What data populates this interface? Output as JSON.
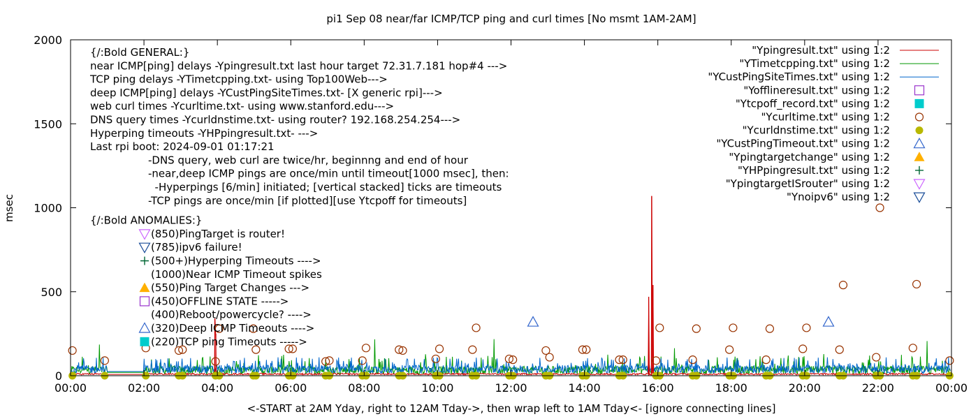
{
  "chart_data": {
    "type": "line",
    "title": "pi1 Sep 08  near/far ICMP/TCP ping and curl times [No msmt 1AM-2AM]",
    "xlabel": "<-START at 2AM Yday, right to 12AM Tday->, then wrap left to 1AM Tday<- [ignore connecting lines]",
    "ylabel": "msec",
    "xlim": [
      0,
      24
    ],
    "ylim": [
      0,
      2000
    ],
    "x_unit": "hours",
    "x_ticks": [
      {
        "x": 0,
        "label": "00:00"
      },
      {
        "x": 2,
        "label": "02:00"
      },
      {
        "x": 4,
        "label": "04:00"
      },
      {
        "x": 6,
        "label": "06:00"
      },
      {
        "x": 8,
        "label": "08:00"
      },
      {
        "x": 10,
        "label": "10:00"
      },
      {
        "x": 12,
        "label": "12:00"
      },
      {
        "x": 14,
        "label": "14:00"
      },
      {
        "x": 16,
        "label": "16:00"
      },
      {
        "x": 18,
        "label": "18:00"
      },
      {
        "x": 20,
        "label": "20:00"
      },
      {
        "x": 22,
        "label": "22:00"
      },
      {
        "x": 24,
        "label": "00:00"
      }
    ],
    "y_ticks": [
      0,
      500,
      1000,
      1500,
      2000
    ],
    "grid": false,
    "legend_position": "top-right",
    "legend": [
      {
        "label": "\"Ypingresult.txt\" using 1:2",
        "symbol": "line",
        "color": "#cc0000"
      },
      {
        "label": "\"YTimetcpping.txt\" using 1:2",
        "symbol": "line",
        "color": "#009900"
      },
      {
        "label": "\"YCustPingSiteTimes.txt\" using 1:2",
        "symbol": "line",
        "color": "#0066cc"
      },
      {
        "label": "\"Yofflineresult.txt\" using 1:2",
        "symbol": "open-square",
        "color": "#9933cc"
      },
      {
        "label": "\"Ytcpoff_record.txt\" using 1:2",
        "symbol": "filled-square",
        "color": "#00cccc"
      },
      {
        "label": "\"Ycurltime.txt\" using 1:2",
        "symbol": "open-circle",
        "color": "#993300"
      },
      {
        "label": "\"Ycurldnstime.txt\" using 1:2",
        "symbol": "filled-circle",
        "color": "#b8b800"
      },
      {
        "label": "\"YCustPingTimeout.txt\" using 1:2",
        "symbol": "open-triangle-up",
        "color": "#3366cc"
      },
      {
        "label": "\"Ypingtargetchange\" using 1:2",
        "symbol": "filled-triangle-up",
        "color": "#ffb000"
      },
      {
        "label": "\"YHPpingresult.txt\" using 1:2",
        "symbol": "plus",
        "color": "#006633"
      },
      {
        "label": "\"YpingtargetISrouter\" using 1:2",
        "symbol": "open-triangle-down",
        "color": "#cc66ff"
      },
      {
        "label": "\"Ynoipv6\" using 1:2",
        "symbol": "open-triangle-down",
        "color": "#1a4d99"
      }
    ],
    "ping_spikes": [
      {
        "x": 3.93,
        "y": 340
      },
      {
        "x": 3.96,
        "y": 250
      },
      {
        "x": 15.75,
        "y": 470
      },
      {
        "x": 15.83,
        "y": 1070
      },
      {
        "x": 15.87,
        "y": 540
      }
    ],
    "curl_points": [
      {
        "x": 0.05,
        "y": 150
      },
      {
        "x": 0.93,
        "y": 90
      },
      {
        "x": 2.05,
        "y": 165
      },
      {
        "x": 2.95,
        "y": 150
      },
      {
        "x": 3.05,
        "y": 155
      },
      {
        "x": 3.95,
        "y": 85
      },
      {
        "x": 4.05,
        "y": 280
      },
      {
        "x": 4.98,
        "y": 280
      },
      {
        "x": 5.05,
        "y": 155
      },
      {
        "x": 5.95,
        "y": 160
      },
      {
        "x": 6.05,
        "y": 160
      },
      {
        "x": 6.95,
        "y": 85
      },
      {
        "x": 7.05,
        "y": 90
      },
      {
        "x": 7.95,
        "y": 90
      },
      {
        "x": 8.05,
        "y": 165
      },
      {
        "x": 8.95,
        "y": 155
      },
      {
        "x": 9.05,
        "y": 150
      },
      {
        "x": 9.95,
        "y": 100
      },
      {
        "x": 10.05,
        "y": 160
      },
      {
        "x": 10.95,
        "y": 155
      },
      {
        "x": 11.05,
        "y": 285
      },
      {
        "x": 11.95,
        "y": 100
      },
      {
        "x": 12.05,
        "y": 95
      },
      {
        "x": 12.95,
        "y": 150
      },
      {
        "x": 13.05,
        "y": 110
      },
      {
        "x": 13.95,
        "y": 155
      },
      {
        "x": 14.05,
        "y": 155
      },
      {
        "x": 14.95,
        "y": 95
      },
      {
        "x": 15.05,
        "y": 95
      },
      {
        "x": 15.95,
        "y": 90
      },
      {
        "x": 16.05,
        "y": 285
      },
      {
        "x": 16.95,
        "y": 95
      },
      {
        "x": 17.05,
        "y": 280
      },
      {
        "x": 17.95,
        "y": 155
      },
      {
        "x": 18.05,
        "y": 285
      },
      {
        "x": 18.95,
        "y": 95
      },
      {
        "x": 19.05,
        "y": 280
      },
      {
        "x": 19.95,
        "y": 160
      },
      {
        "x": 20.05,
        "y": 285
      },
      {
        "x": 20.95,
        "y": 155
      },
      {
        "x": 21.05,
        "y": 540
      },
      {
        "x": 21.95,
        "y": 110
      },
      {
        "x": 22.05,
        "y": 1000
      },
      {
        "x": 22.95,
        "y": 165
      },
      {
        "x": 23.05,
        "y": 545
      },
      {
        "x": 23.95,
        "y": 90
      }
    ],
    "curl_dns_points": [
      {
        "x": 0.05,
        "y": 0
      },
      {
        "x": 0.93,
        "y": 0
      },
      {
        "x": 2.05,
        "y": 0
      },
      {
        "x": 2.95,
        "y": 0
      },
      {
        "x": 3.05,
        "y": 0
      },
      {
        "x": 3.95,
        "y": 0
      },
      {
        "x": 4.05,
        "y": 0
      },
      {
        "x": 4.98,
        "y": 0
      },
      {
        "x": 5.05,
        "y": 0
      },
      {
        "x": 5.95,
        "y": 0
      },
      {
        "x": 6.05,
        "y": 0
      },
      {
        "x": 6.95,
        "y": 0
      },
      {
        "x": 7.05,
        "y": 0
      },
      {
        "x": 7.95,
        "y": 0
      },
      {
        "x": 8.05,
        "y": 0
      },
      {
        "x": 8.95,
        "y": 0
      },
      {
        "x": 9.05,
        "y": 0
      },
      {
        "x": 9.95,
        "y": 0
      },
      {
        "x": 10.05,
        "y": 0
      },
      {
        "x": 10.95,
        "y": 0
      },
      {
        "x": 11.05,
        "y": 0
      },
      {
        "x": 11.95,
        "y": 0
      },
      {
        "x": 12.05,
        "y": 0
      },
      {
        "x": 12.95,
        "y": 0
      },
      {
        "x": 13.05,
        "y": 0
      },
      {
        "x": 13.95,
        "y": 0
      },
      {
        "x": 14.05,
        "y": 0
      },
      {
        "x": 14.95,
        "y": 0
      },
      {
        "x": 15.05,
        "y": 0
      },
      {
        "x": 15.95,
        "y": 0
      },
      {
        "x": 16.05,
        "y": 0
      },
      {
        "x": 16.95,
        "y": 0
      },
      {
        "x": 17.05,
        "y": 0
      },
      {
        "x": 17.95,
        "y": 0
      },
      {
        "x": 18.05,
        "y": 0
      },
      {
        "x": 18.95,
        "y": 0
      },
      {
        "x": 19.05,
        "y": 0
      },
      {
        "x": 19.95,
        "y": 0
      },
      {
        "x": 20.05,
        "y": 0
      },
      {
        "x": 20.95,
        "y": 0
      },
      {
        "x": 21.05,
        "y": 0
      },
      {
        "x": 21.95,
        "y": 0
      },
      {
        "x": 22.05,
        "y": 0
      },
      {
        "x": 22.95,
        "y": 0
      },
      {
        "x": 23.05,
        "y": 0
      },
      {
        "x": 23.95,
        "y": 0
      }
    ],
    "deep_ping_timeouts": [
      {
        "x": 12.6,
        "y": 320
      },
      {
        "x": 20.65,
        "y": 320
      }
    ],
    "tcp_ping_series_level": 30,
    "deep_ping_series_level": 35,
    "near_ping_series_level": 10
  },
  "notes": {
    "general_title": "{/:Bold GENERAL:}",
    "general": [
      "near ICMP[ping] delays -Ypingresult.txt last hour target 72.31.7.181 hop#4 --->",
      "TCP ping delays -YTimetcpping.txt- using Top100Web--->",
      "deep ICMP[ping] delays -YCustPingSiteTimes.txt- [X generic rpi]--->",
      "web curl times -Ycurltime.txt- using www.stanford.edu--->",
      "DNS query times -Ycurldnstime.txt- using router? 192.168.254.254--->",
      "Hyperping timeouts -YHPpingresult.txt- --->",
      "Last rpi boot: 2024-09-01 01:17:21"
    ],
    "details": [
      "-DNS query, web curl are twice/hr, beginnng and end of hour",
      "-near,deep ICMP pings are once/min until timeout[1000 msec], then:",
      "  -Hyperpings [6/min] initiated; [vertical stacked] ticks are timeouts",
      "-TCP pings are once/min [if plotted][use Ytcpoff for timeouts]"
    ],
    "anomalies_title": "{/:Bold ANOMALIES:}",
    "anomalies": [
      {
        "label": "(850)PingTarget is router!",
        "symbol": "open-triangle-down",
        "color": "#cc66ff"
      },
      {
        "label": "(785)ipv6 failure!",
        "symbol": "open-triangle-down",
        "color": "#1a4d99"
      },
      {
        "label": "(500+)Hyperping Timeouts ---->",
        "symbol": "plus",
        "color": "#006633"
      },
      {
        "label": "(1000)Near ICMP Timeout spikes",
        "symbol": "none",
        "color": "#000000"
      },
      {
        "label": "(550)Ping Target Changes --->",
        "symbol": "filled-triangle-up",
        "color": "#ffb000"
      },
      {
        "label": "(450)OFFLINE STATE ----->",
        "symbol": "open-square",
        "color": "#9933cc"
      },
      {
        "label": "(400)Reboot/powercycle? ---->",
        "symbol": "none",
        "color": "#000000"
      },
      {
        "label": "(320)Deep ICMP Timeouts ---->",
        "symbol": "open-triangle-up",
        "color": "#3366cc"
      },
      {
        "label": "(220)TCP ping Timeouts ----->",
        "symbol": "filled-square",
        "color": "#00cccc"
      }
    ]
  }
}
